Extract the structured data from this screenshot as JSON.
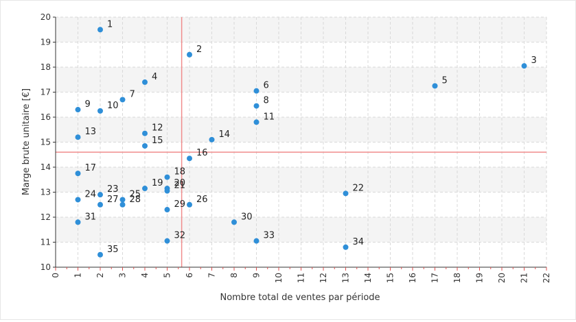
{
  "chart_data": {
    "type": "scatter",
    "xlabel": "Nombre total de ventes par période",
    "ylabel": "Marge brute unitaire [€]",
    "xlim": [
      0,
      22
    ],
    "ylim": [
      10,
      20
    ],
    "x_ticks": [
      0,
      1,
      2,
      3,
      4,
      5,
      6,
      7,
      8,
      9,
      10,
      11,
      12,
      13,
      14,
      15,
      16,
      17,
      18,
      19,
      20,
      21,
      22
    ],
    "y_ticks": [
      10,
      11,
      12,
      13,
      14,
      15,
      16,
      17,
      18,
      19,
      20
    ],
    "grid": true,
    "reference_lines": {
      "x": 5.65,
      "y": 14.6
    },
    "points": [
      {
        "label": "1",
        "x": 2,
        "y": 19.5
      },
      {
        "label": "2",
        "x": 6,
        "y": 18.5
      },
      {
        "label": "3",
        "x": 21,
        "y": 18.05
      },
      {
        "label": "4",
        "x": 4,
        "y": 17.4
      },
      {
        "label": "5",
        "x": 17,
        "y": 17.25
      },
      {
        "label": "6",
        "x": 9,
        "y": 17.05
      },
      {
        "label": "7",
        "x": 3,
        "y": 16.7
      },
      {
        "label": "8",
        "x": 9,
        "y": 16.45
      },
      {
        "label": "9",
        "x": 1,
        "y": 16.3
      },
      {
        "label": "10",
        "x": 2,
        "y": 16.25
      },
      {
        "label": "11",
        "x": 9,
        "y": 15.8
      },
      {
        "label": "12",
        "x": 4,
        "y": 15.35
      },
      {
        "label": "13",
        "x": 1,
        "y": 15.2
      },
      {
        "label": "14",
        "x": 7,
        "y": 15.1
      },
      {
        "label": "15",
        "x": 4,
        "y": 14.85
      },
      {
        "label": "16",
        "x": 6,
        "y": 14.35
      },
      {
        "label": "17",
        "x": 1,
        "y": 13.75
      },
      {
        "label": "18",
        "x": 5,
        "y": 13.6
      },
      {
        "label": "19",
        "x": 4,
        "y": 13.15
      },
      {
        "label": "20",
        "x": 5,
        "y": 13.15
      },
      {
        "label": "21",
        "x": 5,
        "y": 13.05
      },
      {
        "label": "22",
        "x": 13,
        "y": 12.95
      },
      {
        "label": "23",
        "x": 2,
        "y": 12.9
      },
      {
        "label": "24",
        "x": 1,
        "y": 12.7
      },
      {
        "label": "25",
        "x": 3,
        "y": 12.7
      },
      {
        "label": "26",
        "x": 6,
        "y": 12.5
      },
      {
        "label": "27",
        "x": 2,
        "y": 12.5
      },
      {
        "label": "28",
        "x": 3,
        "y": 12.5
      },
      {
        "label": "29",
        "x": 5,
        "y": 12.3
      },
      {
        "label": "30",
        "x": 8,
        "y": 11.8
      },
      {
        "label": "31",
        "x": 1,
        "y": 11.8
      },
      {
        "label": "32",
        "x": 5,
        "y": 11.05
      },
      {
        "label": "33",
        "x": 9,
        "y": 11.05
      },
      {
        "label": "34",
        "x": 13,
        "y": 10.8
      },
      {
        "label": "35",
        "x": 2,
        "y": 10.5
      }
    ],
    "colors": {
      "point": "#2f8fd8",
      "reference_line": "#f08c8c",
      "grid": "#d9d9d9",
      "band": "#f4f4f4",
      "axis": "#333333",
      "x_tick_mark": "#e05050"
    }
  }
}
